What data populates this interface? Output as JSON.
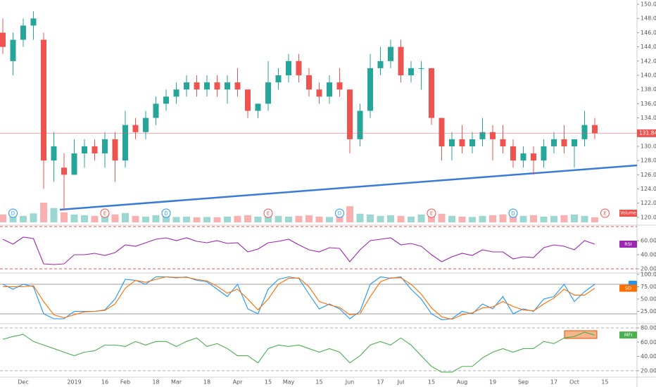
{
  "chart_data": [
    {
      "type": "candlestick",
      "categories": [
        null,
        null,
        "Dec",
        null,
        null,
        null,
        null,
        "2019",
        null,
        null,
        "16",
        null,
        "Feb",
        null,
        null,
        "18",
        null,
        "Mar",
        null,
        null,
        "18",
        null,
        null,
        "Apr",
        null,
        null,
        "15",
        null,
        "May",
        null,
        null,
        "15",
        null,
        null,
        "Jun",
        null,
        null,
        "17",
        null,
        "Jul",
        null,
        null,
        "15",
        null,
        null,
        "Aug",
        null,
        null,
        "19",
        null,
        null,
        "Sep",
        null,
        null,
        "17",
        null,
        "Oct",
        null,
        null,
        "15",
        null,
        null
      ],
      "open": [
        146,
        142,
        145,
        147,
        145,
        128,
        127,
        126,
        129,
        130,
        129,
        131,
        128,
        133,
        132,
        134,
        136,
        137,
        138,
        139,
        138,
        139,
        138,
        139,
        138,
        135,
        136,
        139,
        140,
        142,
        140,
        138,
        137,
        139,
        138,
        131,
        135,
        141,
        142,
        144,
        140,
        141,
        141,
        134,
        130,
        131,
        130,
        131,
        132,
        131,
        130,
        128,
        129,
        128,
        130,
        131,
        130,
        131,
        133,
        null,
        null,
        null
      ],
      "high": [
        148,
        146,
        148,
        149,
        146,
        132,
        129,
        131,
        131,
        131,
        132,
        132,
        135,
        134,
        135,
        137,
        138,
        139,
        140,
        140,
        140,
        140,
        140,
        141,
        138,
        136,
        142,
        141,
        143,
        143,
        141,
        139,
        140,
        141,
        138,
        136,
        143,
        144,
        145,
        145,
        142,
        142,
        141,
        134,
        132,
        133,
        132,
        134,
        133,
        133,
        131,
        130,
        130,
        131,
        132,
        133,
        131,
        135,
        134,
        null,
        null,
        null
      ],
      "low": [
        143,
        140,
        144,
        145,
        124,
        125,
        121,
        126,
        127,
        128,
        127,
        125,
        127,
        131,
        131,
        133,
        135,
        136,
        137,
        137,
        137,
        137,
        136,
        137,
        134,
        134,
        135,
        138,
        139,
        139,
        137,
        136,
        136,
        137,
        129,
        130,
        134,
        140,
        141,
        139,
        139,
        138,
        133,
        128,
        128,
        129,
        129,
        130,
        128,
        129,
        127,
        127,
        126,
        127,
        129,
        129,
        127,
        130,
        131,
        null,
        null,
        null
      ],
      "close": [
        144,
        145,
        147,
        148,
        128,
        130,
        126,
        129,
        130,
        129,
        131,
        128,
        133,
        132,
        134,
        136,
        137,
        138,
        139,
        138,
        139,
        138,
        139,
        138,
        135,
        136,
        139,
        140,
        142,
        140,
        138,
        137,
        139,
        138,
        131,
        135,
        141,
        142,
        144,
        140,
        141,
        141,
        134,
        130,
        131,
        130,
        131,
        132,
        131,
        130,
        128,
        129,
        128,
        130,
        131,
        130,
        131,
        133,
        131.84,
        null,
        null,
        null
      ],
      "volume": [
        22,
        20,
        18,
        25,
        55,
        40,
        28,
        22,
        20,
        18,
        24,
        22,
        26,
        18,
        16,
        20,
        18,
        15,
        16,
        14,
        15,
        14,
        16,
        18,
        20,
        16,
        22,
        18,
        16,
        18,
        20,
        16,
        15,
        18,
        45,
        24,
        22,
        18,
        20,
        18,
        16,
        22,
        26,
        24,
        18,
        16,
        15,
        18,
        20,
        22,
        24,
        18,
        20,
        16,
        18,
        20,
        22,
        18,
        14,
        null,
        null,
        null
      ],
      "volume_name": "Volume",
      "events": [
        null,
        "D",
        null,
        null,
        null,
        null,
        null,
        null,
        null,
        null,
        "E",
        null,
        null,
        null,
        null,
        null,
        "D",
        null,
        null,
        null,
        null,
        null,
        null,
        null,
        null,
        null,
        "E",
        null,
        null,
        null,
        null,
        null,
        null,
        "D",
        null,
        null,
        null,
        null,
        null,
        null,
        null,
        null,
        "E",
        null,
        null,
        null,
        null,
        null,
        null,
        null,
        "D",
        null,
        null,
        null,
        null,
        null,
        null,
        null,
        null,
        "E",
        null,
        null
      ],
      "up_color": "#26a69a",
      "down_color": "#ef5350",
      "ylim": [
        119.1,
        150.6
      ],
      "yticks": [
        {
          "value": 150,
          "label": "150.00"
        },
        {
          "value": 148,
          "label": "148.00"
        },
        {
          "value": 146,
          "label": "146.00"
        },
        {
          "value": 144,
          "label": "144.00"
        },
        {
          "value": 142,
          "label": "142.00"
        },
        {
          "value": 140,
          "label": "140.00"
        },
        {
          "value": 138,
          "label": "138.00"
        },
        {
          "value": 136,
          "label": "136.00"
        },
        {
          "value": 134,
          "label": "134.00"
        },
        {
          "value": 132,
          "label": "132.00"
        },
        {
          "value": 130,
          "label": "130.00"
        },
        {
          "value": 128,
          "label": "128.00"
        },
        {
          "value": 126,
          "label": "126.00"
        },
        {
          "value": 124,
          "label": "124.00"
        },
        {
          "value": 122,
          "label": "122.00"
        },
        {
          "value": 120,
          "label": "120.00"
        }
      ]
    },
    {
      "type": "line",
      "series": [
        {
          "name": "RSI",
          "color": "#9c27b0",
          "values": [
            62,
            55,
            65,
            63,
            27,
            26,
            27,
            40,
            40,
            42,
            39,
            43,
            54,
            52,
            57,
            62,
            64,
            60,
            64,
            59,
            57,
            60,
            56,
            57,
            44,
            48,
            57,
            59,
            62,
            54,
            47,
            44,
            50,
            49,
            30,
            47,
            60,
            62,
            64,
            54,
            56,
            52,
            40,
            30,
            37,
            42,
            39,
            47,
            44,
            44,
            34,
            37,
            36,
            50,
            54,
            52,
            47,
            60,
            55,
            null,
            null,
            null
          ]
        }
      ],
      "bands": [
        80,
        20
      ],
      "band_style": "dashed",
      "band_color": "#ef5350",
      "ylim": [
        16,
        80
      ],
      "yticks": [
        {
          "value": 60,
          "label": "60.00"
        },
        {
          "value": 40,
          "label": "40.00"
        },
        {
          "value": 20,
          "label": "20.00"
        }
      ]
    },
    {
      "type": "line",
      "series": [
        {
          "color": "#2196f3",
          "values": [
            80,
            70,
            80,
            75,
            20,
            10,
            10,
            25,
            25,
            25,
            28,
            50,
            90,
            88,
            80,
            95,
            95,
            93,
            95,
            88,
            85,
            70,
            55,
            80,
            30,
            20,
            70,
            90,
            95,
            92,
            60,
            30,
            40,
            30,
            10,
            25,
            80,
            95,
            92,
            95,
            70,
            50,
            20,
            8,
            10,
            25,
            20,
            40,
            30,
            55,
            20,
            30,
            25,
            50,
            55,
            80,
            45,
            65,
            80,
            null,
            null,
            null
          ]
        },
        {
          "name": "SD",
          "color": "#ff6d00",
          "values": [
            75,
            75,
            75,
            77,
            45,
            18,
            12,
            18,
            24,
            25,
            27,
            40,
            72,
            88,
            84,
            90,
            95,
            94,
            94,
            90,
            87,
            76,
            62,
            70,
            50,
            28,
            50,
            80,
            92,
            93,
            75,
            45,
            38,
            33,
            18,
            20,
            55,
            85,
            93,
            93,
            80,
            60,
            32,
            14,
            9,
            18,
            22,
            32,
            34,
            45,
            35,
            28,
            26,
            40,
            52,
            70,
            58,
            58,
            72,
            null,
            null,
            null
          ]
        }
      ],
      "bands": [
        80,
        20
      ],
      "band_style": "solid",
      "band_color": "#9e9e9e",
      "ylim": [
        0,
        100
      ],
      "yticks": [
        {
          "value": 100,
          "label": "100.00"
        },
        {
          "value": 75,
          "label": "75.00"
        },
        {
          "value": 50,
          "label": "50.00"
        },
        {
          "value": 25,
          "label": "25.00"
        }
      ]
    },
    {
      "type": "line",
      "series": [
        {
          "name": "MFI",
          "color": "#4caf50",
          "values": [
            64,
            68,
            71,
            61,
            56,
            51,
            46,
            41,
            46,
            48,
            56,
            56,
            54,
            61,
            56,
            61,
            61,
            54,
            61,
            66,
            54,
            58,
            51,
            41,
            41,
            31,
            51,
            56,
            54,
            56,
            51,
            46,
            51,
            46,
            31,
            41,
            56,
            61,
            56,
            66,
            56,
            41,
            26,
            18,
            18,
            26,
            26,
            38,
            46,
            51,
            46,
            51,
            51,
            61,
            58,
            66,
            68,
            74,
            70,
            null,
            null,
            null
          ]
        }
      ],
      "bands": [
        80,
        20
      ],
      "band_style": "dashed",
      "band_color": "#b0b0b0",
      "ylim": [
        7,
        84
      ],
      "yticks": [
        {
          "value": 80,
          "label": "80.00"
        },
        {
          "value": 60,
          "label": "60.00"
        },
        {
          "value": 40,
          "label": "40.00"
        },
        {
          "value": 20,
          "label": "20.00"
        }
      ]
    }
  ]
}
